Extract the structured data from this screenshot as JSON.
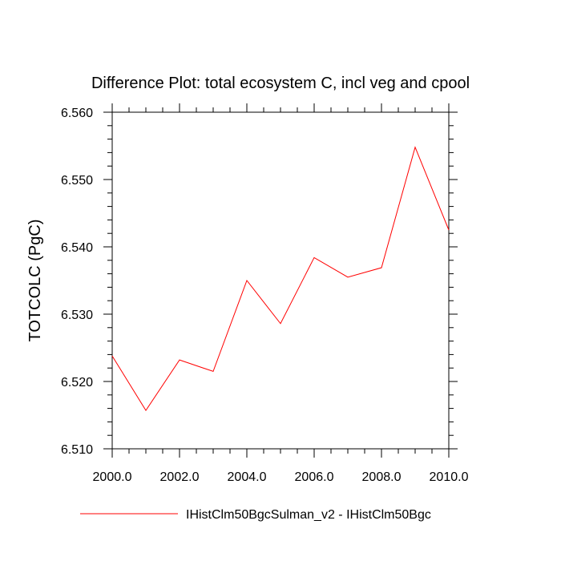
{
  "chart_data": {
    "type": "line",
    "title": "Difference Plot: total ecosystem C, incl veg and cpool",
    "xlabel": "",
    "ylabel": "TOTCOLC  (PgC)",
    "xlim": [
      2000,
      2010
    ],
    "ylim": [
      6.51,
      6.56
    ],
    "x_ticks": [
      2000,
      2002,
      2004,
      2006,
      2008,
      2010
    ],
    "x_tick_labels": [
      "2000.0",
      "2002.0",
      "2004.0",
      "2006.0",
      "2008.0",
      "2010.0"
    ],
    "y_ticks": [
      6.51,
      6.52,
      6.53,
      6.54,
      6.55,
      6.56
    ],
    "y_tick_labels": [
      "6.510",
      "6.520",
      "6.530",
      "6.540",
      "6.550",
      "6.560"
    ],
    "grid": false,
    "legend_position": "bottom",
    "series": [
      {
        "name": "IHistClm50BgcSulman_v2 - IHistClm50Bgc",
        "color": "#ff0000",
        "x": [
          2000,
          2001,
          2002,
          2003,
          2004,
          2005,
          2006,
          2007,
          2008,
          2009,
          2010
        ],
        "y": [
          6.5238,
          6.5157,
          6.5232,
          6.5215,
          6.535,
          6.5286,
          6.5384,
          6.5355,
          6.5369,
          6.5548,
          6.5425
        ]
      }
    ]
  }
}
